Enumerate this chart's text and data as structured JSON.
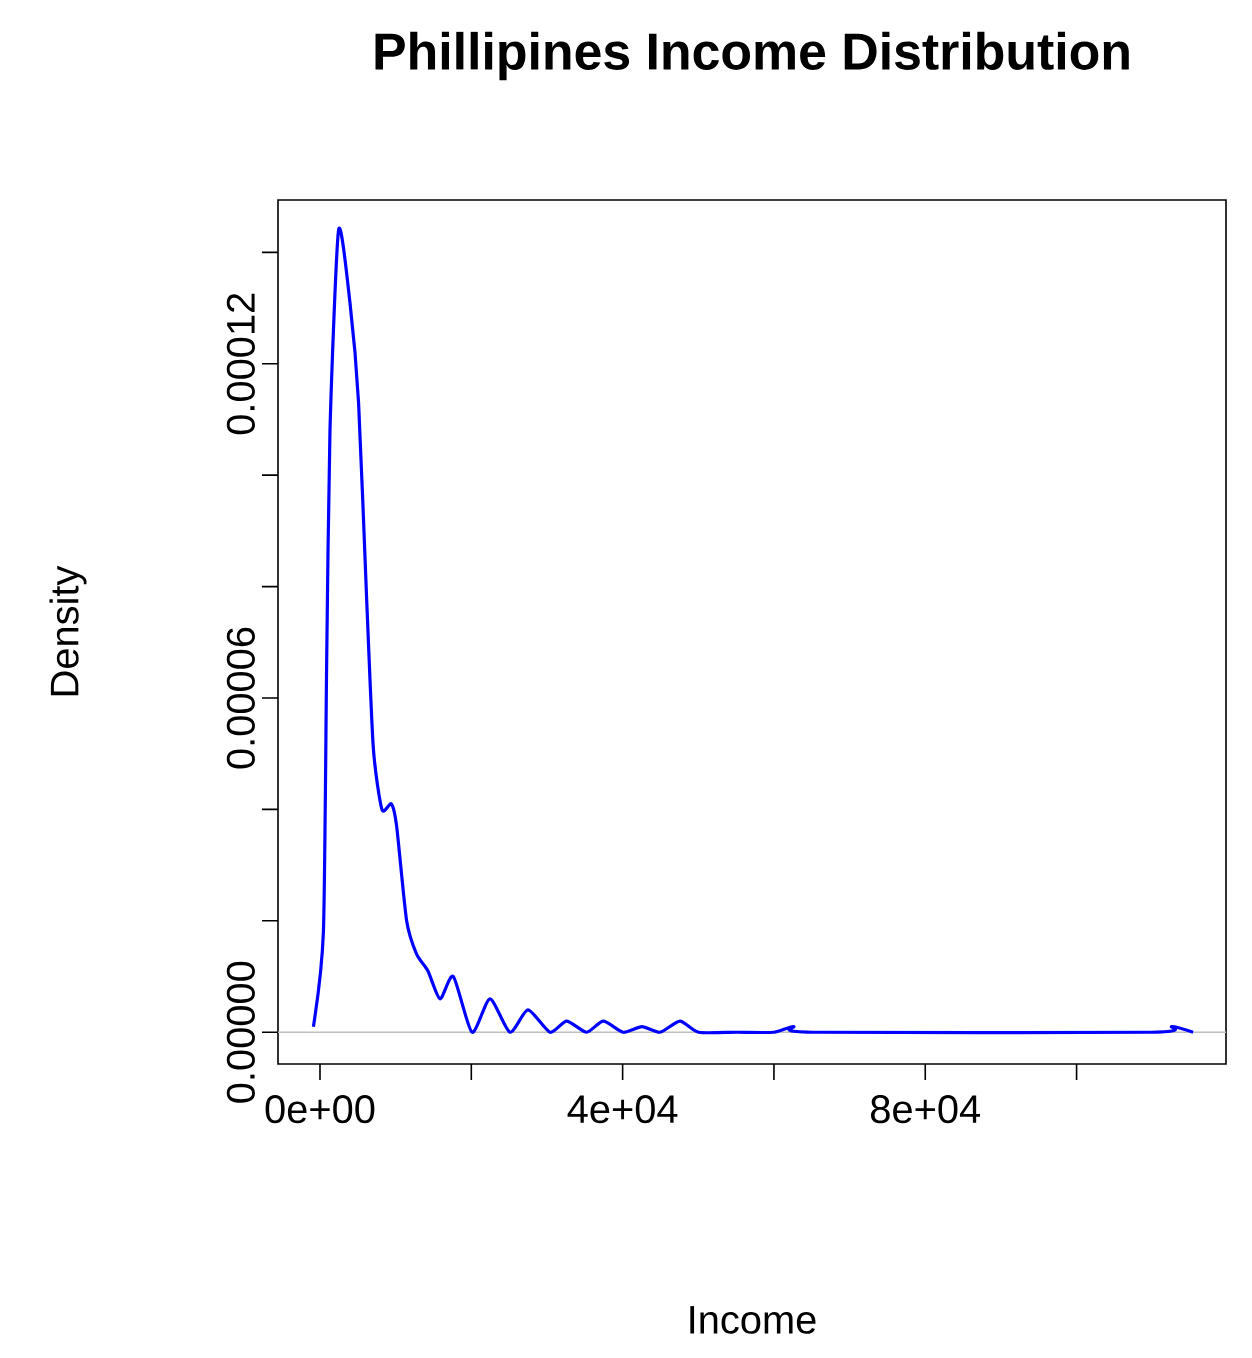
{
  "chart_data": {
    "type": "line",
    "title": "Phillipines Income Distribution",
    "xlabel": "Income",
    "ylabel": "Density",
    "series": [
      {
        "color": "#0000ff",
        "x": [
          -870,
          450,
          880,
          1320,
          2460,
          3960,
          5100,
          6160,
          7050,
          8190,
          9430,
          10130,
          11450,
          12770,
          14270,
          15860,
          17630,
          20090,
          22470,
          25110,
          27490,
          30400,
          32600,
          35240,
          37450,
          40090,
          42550,
          44940,
          47580,
          50040,
          55000,
          60000,
          62570,
          65000,
          110000,
          112600,
          115400
        ],
        "values": [
          1e-06,
          1.8e-05,
          6.6e-05,
          0.000108,
          0.000144,
          0.000131,
          0.000113,
          7.8e-05,
          5.1e-05,
          4e-05,
          4.1e-05,
          3.7e-05,
          2e-05,
          1.4e-05,
          1.1e-05,
          6e-06,
          1e-05,
          0,
          6e-06,
          0,
          4e-06,
          0,
          2e-06,
          0,
          2e-06,
          0,
          1e-06,
          0,
          2e-06,
          0,
          0,
          0,
          1e-06,
          0,
          0,
          1e-06,
          0
        ]
      }
    ],
    "xlim": [
      -5550,
      119750
    ],
    "ylim": [
      -5.7e-06,
      0.0001494
    ],
    "xticks": [
      {
        "value": 0,
        "label": "0e+00"
      },
      {
        "value": 20000,
        "label": null
      },
      {
        "value": 40000,
        "label": "4e+04"
      },
      {
        "value": 60000,
        "label": null
      },
      {
        "value": 80000,
        "label": "8e+04"
      },
      {
        "value": 100000,
        "label": null
      }
    ],
    "yticks": [
      {
        "value": 0,
        "label": "0.00000"
      },
      {
        "value": 2e-05,
        "label": null
      },
      {
        "value": 4e-05,
        "label": null
      },
      {
        "value": 6e-05,
        "label": "0.00006"
      },
      {
        "value": 8e-05,
        "label": null
      },
      {
        "value": 0.0001,
        "label": null
      },
      {
        "value": 0.00012,
        "label": "0.00012"
      },
      {
        "value": 0.00014,
        "label": null
      }
    ],
    "ref_lines": [
      {
        "axis": "y",
        "value": 0,
        "color": "#bebebe"
      }
    ],
    "grid": false,
    "marker": "none",
    "line_style": "solid"
  }
}
